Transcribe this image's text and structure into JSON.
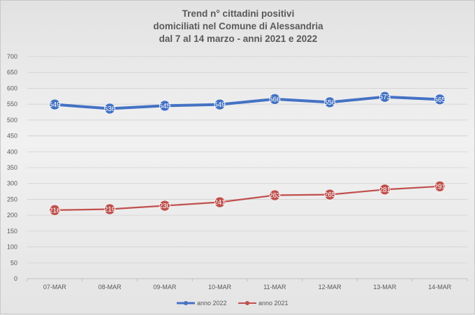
{
  "title_lines": [
    "Trend n° cittadini positivi",
    "domiciliati nel Comune di Alessandria",
    "dal 7 al 14 marzo - anni 2021 e 2022"
  ],
  "chart_data": {
    "type": "line",
    "title": "Trend n° cittadini positivi domiciliati nel Comune di Alessandria dal 7 al 14 marzo - anni 2021 e 2022",
    "categories": [
      "07-MAR",
      "08-MAR",
      "09-MAR",
      "10-MAR",
      "11-MAR",
      "12-MAR",
      "13-MAR",
      "14-MAR"
    ],
    "series": [
      {
        "name": "anno 2022",
        "color": "#4472c4",
        "values": [
          549,
          536,
          545,
          549,
          566,
          556,
          573,
          565
        ]
      },
      {
        "name": "anno 2021",
        "color": "#c0504d",
        "values": [
          216,
          219,
          230,
          241,
          263,
          265,
          281,
          291
        ]
      }
    ],
    "y_ticks": [
      0,
      50,
      100,
      150,
      200,
      250,
      300,
      350,
      400,
      450,
      500,
      550,
      600,
      650,
      700
    ],
    "ylim": [
      0,
      700
    ],
    "grid": true,
    "data_labels": true,
    "legend_position": "bottom"
  }
}
